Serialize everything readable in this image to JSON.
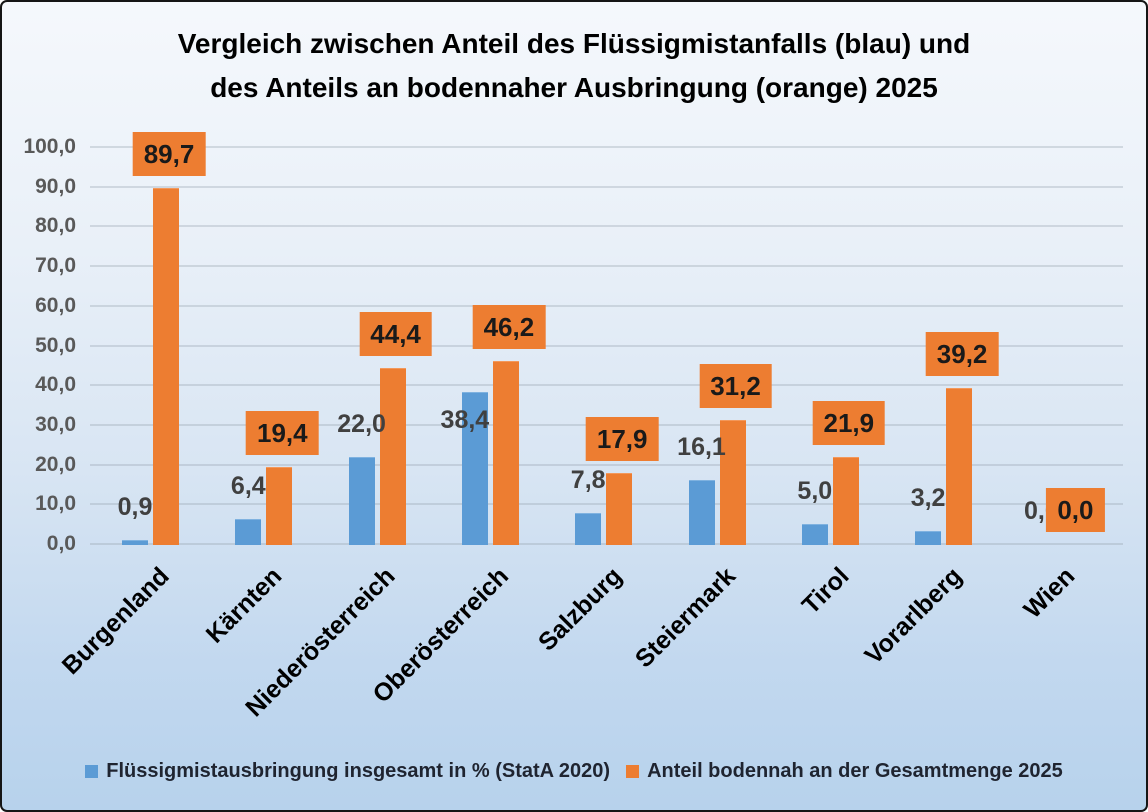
{
  "chart_data": {
    "type": "bar",
    "title_line1": "Vergleich zwischen Anteil des Flüssigmistanfalls (blau) und",
    "title_line2": "des Anteils an bodennaher Ausbringung (orange) 2025",
    "categories": [
      "Burgenland",
      "Kärnten",
      "Niederösterreich",
      "Oberösterreich",
      "Salzburg",
      "Steiermark",
      "Tirol",
      "Vorarlberg",
      "Wien"
    ],
    "series": [
      {
        "name": "Flüssigmistausbringung insgesamt in % (StatA 2020)",
        "color": "#5B9BD5",
        "values": [
          0.9,
          6.4,
          22.0,
          38.4,
          7.8,
          16.1,
          5.0,
          3.2,
          0.0
        ],
        "labels": [
          "0,9",
          "6,4",
          "22,0",
          "38,4",
          "7,8",
          "16,1",
          "5,0",
          "3,2",
          "0,0"
        ]
      },
      {
        "name": "Anteil bodennah an der Gesamtmenge 2025",
        "color": "#ED7D31",
        "values": [
          89.7,
          19.4,
          44.4,
          46.2,
          17.9,
          31.2,
          21.9,
          39.2,
          0.0
        ],
        "labels": [
          "89,7",
          "19,4",
          "44,4",
          "46,2",
          "17,9",
          "31,2",
          "21,9",
          "39,2",
          "0,0"
        ]
      }
    ],
    "y_ticks": [
      "100,0",
      "90,0",
      "80,0",
      "70,0",
      "60,0",
      "50,0",
      "40,0",
      "30,0",
      "20,0",
      "10,0",
      "0,0"
    ],
    "ylim": [
      0,
      100
    ],
    "y_step": 10,
    "grid": true,
    "legend_position": "bottom",
    "category_label_rotation_deg": -45,
    "colors": {
      "bar_blue": "#5B9BD5",
      "bar_orange": "#ED7D31",
      "blue_value_label": "#404040",
      "orange_value_label": "#1a1a1a",
      "y_tick_label": "#595959",
      "title": "#000000",
      "gridline_gray": "#d3d9df"
    }
  }
}
